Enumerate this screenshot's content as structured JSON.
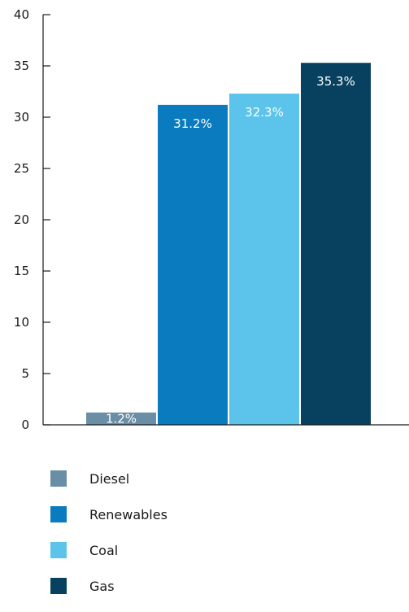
{
  "chart_data": {
    "type": "bar",
    "categories": [
      "Diesel",
      "Renewables",
      "Coal",
      "Gas"
    ],
    "values": [
      1.2,
      31.2,
      32.3,
      35.3
    ],
    "data_labels": [
      "1.2%",
      "31.2%",
      "32.3%",
      "35.3%"
    ],
    "colors": [
      "#6a8ea6",
      "#0a7bbf",
      "#5cc4ea",
      "#07415f"
    ],
    "title": "",
    "xlabel": "",
    "ylabel": "",
    "ylim": [
      0,
      40
    ],
    "yticks": [
      0,
      5,
      10,
      15,
      20,
      25,
      30,
      35,
      40
    ],
    "grid": false,
    "legend_position": "bottom-left"
  }
}
